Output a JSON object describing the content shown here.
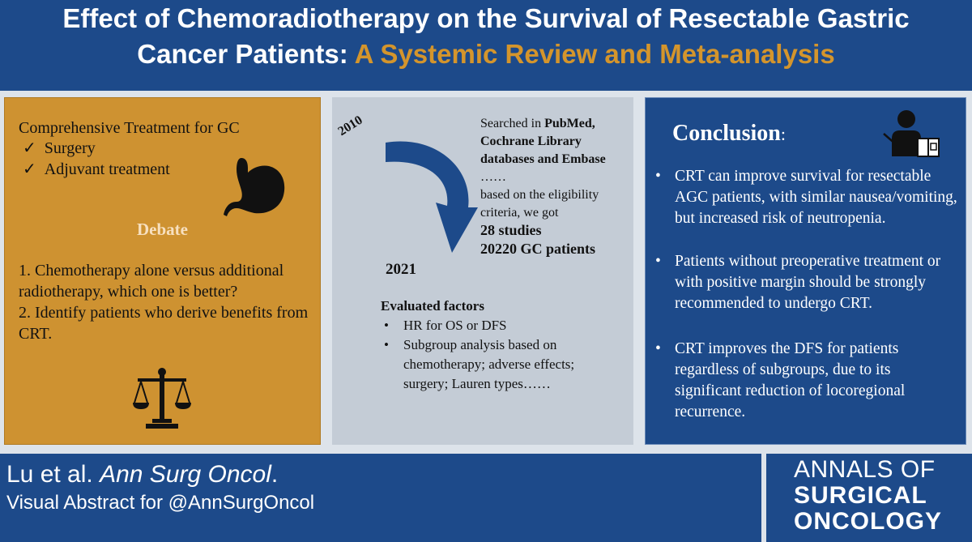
{
  "header": {
    "line1": "Effect of Chemoradiotherapy on the Survival of Resectable Gastric",
    "line2_white": "Cancer Patients: ",
    "line2_accent": "A Systemic Review and Meta-analysis"
  },
  "left_panel": {
    "heading": "Comprehensive Treatment for GC",
    "items": [
      "Surgery",
      "Adjuvant treatment"
    ],
    "check_mark": "✓",
    "debate_title": "Debate",
    "questions": [
      "1. Chemotherapy alone versus additional radiotherapy,  which one is better?",
      "2. Identify patients who derive benefits from CRT."
    ],
    "icons": [
      "stomach-icon",
      "scales-icon"
    ]
  },
  "middle_panel": {
    "year_start": "2010",
    "year_end": "2021",
    "searched_prefix": "Searched in ",
    "searched_bold": "PubMed, Cochrane Library databases and Embase",
    "ellipsis": "……",
    "eligibility": "based on the eligibility criteria, we got",
    "studies": "28 studies",
    "patients": "20220 GC patients",
    "factors_title": "Evaluated factors",
    "factors": [
      "HR for OS or DFS",
      "Subgroup analysis based on chemotherapy; adverse effects; surgery; Lauren types……"
    ],
    "icons": [
      "curved-arrow-icon"
    ]
  },
  "right_panel": {
    "title": "Conclusion",
    "title_suffix": ":",
    "bullet": "•",
    "points": [
      "CRT can improve survival for resectable AGC patients, with similar nausea/vomiting, but increased risk of neutropenia.",
      "Patients without preoperative treatment or with positive margin should be strongly recommended to undergo CRT.",
      "CRT improves the DFS for patients regardless of subgroups, due to its significant reduction of locoregional recurrence."
    ],
    "icons": [
      "presenter-icon"
    ]
  },
  "footer": {
    "citation_authors": "Lu et al. ",
    "citation_journal": "Ann Surg Oncol",
    "citation_period": ".",
    "subtitle": "Visual Abstract for @AnnSurgOncol",
    "logo_line1": "ANNALS OF",
    "logo_line2": "SURGICAL",
    "logo_line3": "ONCOLOGY"
  },
  "colors": {
    "navy": "#1d4a8a",
    "gold": "#ce9231",
    "accent_orange": "#d4952c",
    "slate": "#c4ccd6"
  }
}
